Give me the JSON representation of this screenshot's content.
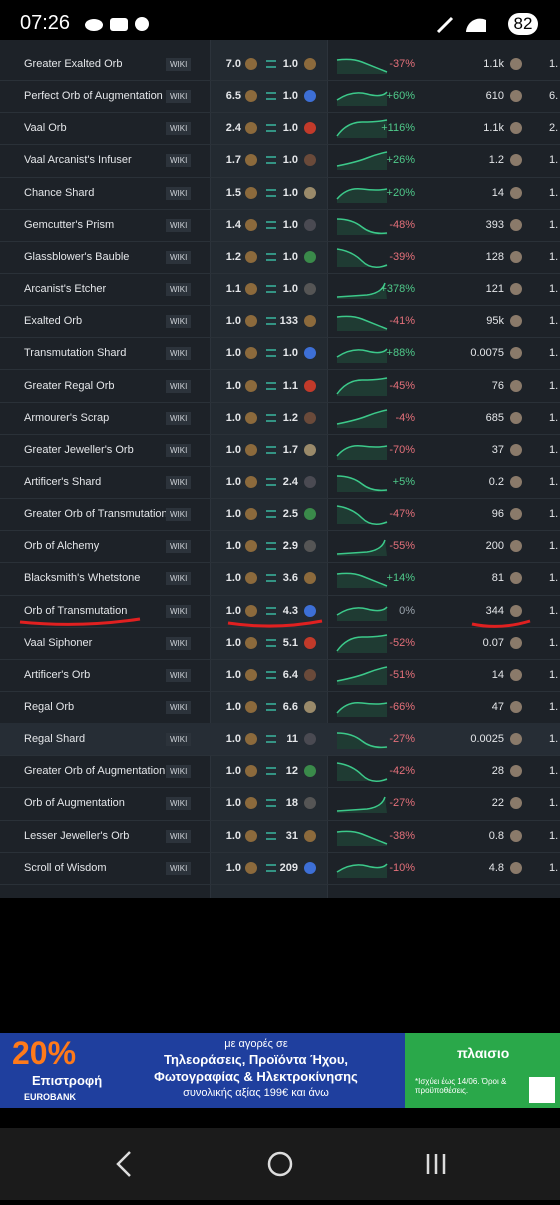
{
  "status_bar": {
    "time": "07:26",
    "battery": "82"
  },
  "table": {
    "wiki_label": "WIKI",
    "rows": [
      [
        "Greater Exalted Orb",
        "7.0",
        "1.0",
        "-37%",
        "1.1k",
        "1."
      ],
      [
        "Perfect Orb of Augmentation",
        "6.5",
        "1.0",
        "+60%",
        "610",
        "6."
      ],
      [
        "Vaal Orb",
        "2.4",
        "1.0",
        "+116%",
        "1.1k",
        "2."
      ],
      [
        "Vaal Arcanist's Infuser",
        "1.7",
        "1.0",
        "+26%",
        "1.2",
        "1."
      ],
      [
        "Chance Shard",
        "1.5",
        "1.0",
        "+20%",
        "14",
        "1."
      ],
      [
        "Gemcutter's Prism",
        "1.4",
        "1.0",
        "-48%",
        "393",
        "1."
      ],
      [
        "Glassblower's Bauble",
        "1.2",
        "1.0",
        "-39%",
        "128",
        "1."
      ],
      [
        "Arcanist's Etcher",
        "1.1",
        "1.0",
        "+378%",
        "121",
        "1."
      ],
      [
        "Exalted Orb",
        "1.0",
        "133",
        "-41%",
        "95k",
        "1."
      ],
      [
        "Transmutation Shard",
        "1.0",
        "1.0",
        "+88%",
        "0.0075",
        "1."
      ],
      [
        "Greater Regal Orb",
        "1.0",
        "1.1",
        "-45%",
        "76",
        "1."
      ],
      [
        "Armourer's Scrap",
        "1.0",
        "1.2",
        "-4%",
        "685",
        "1."
      ],
      [
        "Greater Jeweller's Orb",
        "1.0",
        "1.7",
        "-70%",
        "37",
        "1."
      ],
      [
        "Artificer's Shard",
        "1.0",
        "2.4",
        "+5%",
        "0.2",
        "1."
      ],
      [
        "Greater Orb of Transmutation",
        "1.0",
        "2.5",
        "-47%",
        "96",
        "1."
      ],
      [
        "Orb of Alchemy",
        "1.0",
        "2.9",
        "-55%",
        "200",
        "1."
      ],
      [
        "Blacksmith's Whetstone",
        "1.0",
        "3.6",
        "+14%",
        "81",
        "1."
      ],
      [
        "Orb of Transmutation",
        "1.0",
        "4.3",
        "0%",
        "344",
        "1."
      ],
      [
        "Vaal Siphoner",
        "1.0",
        "5.1",
        "-52%",
        "0.07",
        "1."
      ],
      [
        "Artificer's Orb",
        "1.0",
        "6.4",
        "-51%",
        "14",
        "1."
      ],
      [
        "Regal Orb",
        "1.0",
        "6.6",
        "-66%",
        "47",
        "1."
      ],
      [
        "Regal Shard",
        "1.0",
        "11",
        "-27%",
        "0.0025",
        "1."
      ],
      [
        "Greater Orb of Augmentation",
        "1.0",
        "12",
        "-42%",
        "28",
        "1."
      ],
      [
        "Orb of Augmentation",
        "1.0",
        "18",
        "-27%",
        "22",
        "1."
      ],
      [
        "Lesser Jeweller's Orb",
        "1.0",
        "31",
        "-38%",
        "0.8",
        "1."
      ],
      [
        "Scroll of Wisdom",
        "1.0",
        "209",
        "-10%",
        "4.8",
        "1."
      ]
    ]
  },
  "ad": {
    "percent": "20%",
    "cashback": "Επιστροφή",
    "bank": "EUROBANK",
    "line1": "με αγορές σε",
    "line2": "Τηλεοράσεις, Προϊόντα Ήχου,",
    "line3": "Φωτογραφίας & Ηλεκτροκίνησης",
    "line4": "συνολικής αξίας 199€ και άνω",
    "brand": "πλαισιο",
    "terms": "*Ισχύει έως 14/06. Όροι & προϋποθέσεις."
  }
}
